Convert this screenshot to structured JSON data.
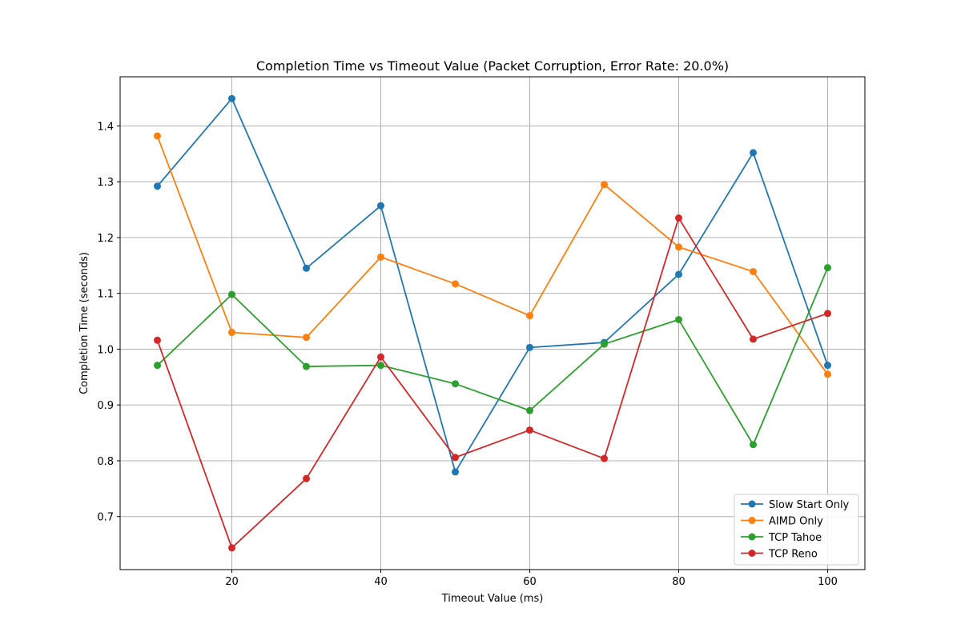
{
  "chart_data": {
    "type": "line",
    "title": "Completion Time vs Timeout Value (Packet Corruption, Error Rate: 20.0%)",
    "xlabel": "Timeout Value (ms)",
    "ylabel": "Completion Time (seconds)",
    "x": [
      10,
      20,
      30,
      40,
      50,
      60,
      70,
      80,
      90,
      100
    ],
    "xlim": [
      5,
      105
    ],
    "ylim": [
      0.605,
      1.488
    ],
    "xticks": [
      20,
      40,
      60,
      80,
      100
    ],
    "yticks": [
      0.7,
      0.8,
      0.9,
      1.0,
      1.1,
      1.2,
      1.3,
      1.4
    ],
    "grid": true,
    "legend_position": "lower-right",
    "series": [
      {
        "name": "Slow Start Only",
        "color": "#1f77b4",
        "values": [
          1.292,
          1.449,
          1.145,
          1.257,
          0.78,
          1.003,
          1.012,
          1.134,
          1.352,
          0.971
        ]
      },
      {
        "name": "AIMD Only",
        "color": "#ff7f0e",
        "values": [
          1.382,
          1.03,
          1.021,
          1.165,
          1.117,
          1.06,
          1.295,
          1.183,
          1.139,
          0.955
        ]
      },
      {
        "name": "TCP Tahoe",
        "color": "#2ca02c",
        "values": [
          0.971,
          1.098,
          0.969,
          0.971,
          0.938,
          0.89,
          1.009,
          1.053,
          0.829,
          1.146
        ]
      },
      {
        "name": "TCP Reno",
        "color": "#d62728",
        "values": [
          1.016,
          0.644,
          0.768,
          0.986,
          0.806,
          0.855,
          0.804,
          1.235,
          1.018,
          1.064
        ]
      }
    ]
  }
}
